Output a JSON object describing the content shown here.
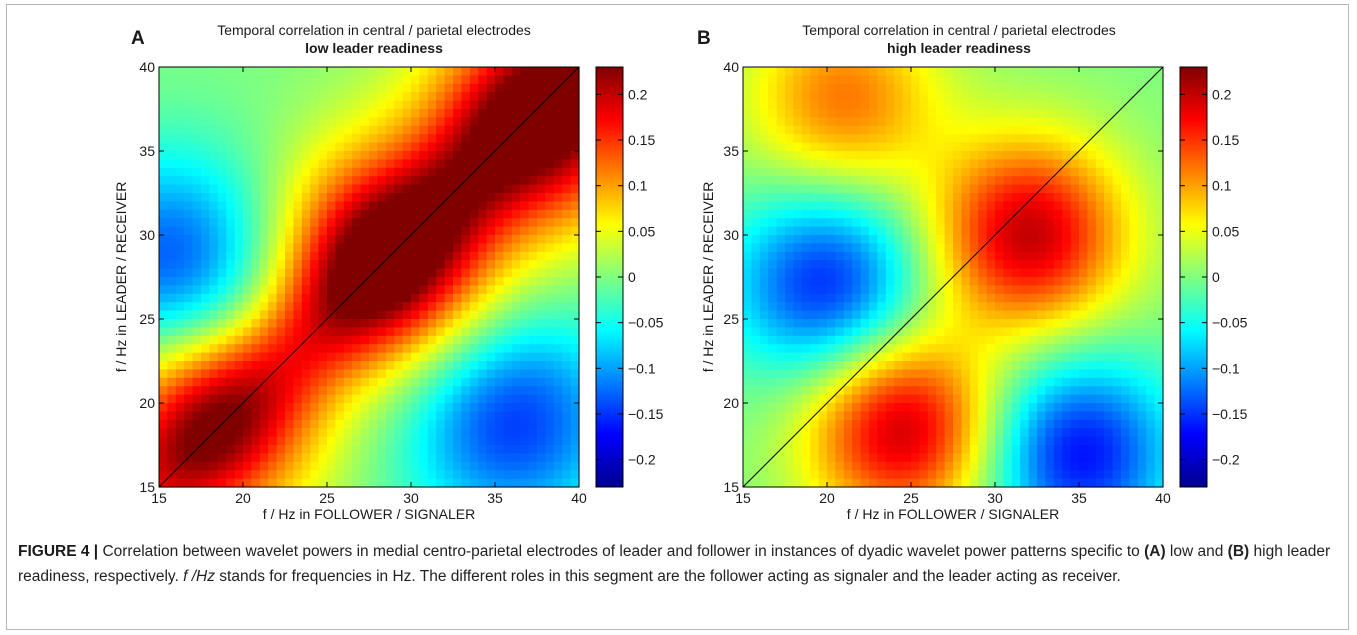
{
  "colors": {
    "colormap": "jet",
    "diagonal_line": "#000000"
  },
  "chart_data": [
    {
      "type": "heatmap",
      "panel_label": "A",
      "title": "Temporal correlation in central / parietal electrodes",
      "subtitle": "low leader readiness",
      "xlabel": "f / Hz in FOLLOWER / SIGNALER",
      "ylabel": "f / Hz in LEADER / RECEIVER",
      "xlim": [
        15,
        40
      ],
      "ylim": [
        15,
        40
      ],
      "x_ticks": [
        15,
        20,
        25,
        30,
        35,
        40
      ],
      "y_ticks": [
        15,
        20,
        25,
        30,
        35,
        40
      ],
      "colorbar": {
        "range": [
          -0.23,
          0.23
        ],
        "ticks": [
          -0.2,
          -0.15,
          -0.1,
          -0.05,
          0,
          0.05,
          0.1,
          0.15,
          0.2
        ],
        "tick_labels": [
          "−0.2",
          "−0.15",
          "−0.1",
          "−0.05",
          "0",
          "0.05",
          "0.1",
          "0.15",
          "0.2"
        ]
      },
      "diagonal_line": {
        "from": [
          15,
          15
        ],
        "to": [
          40,
          40
        ]
      },
      "value_range": [
        -0.18,
        0.23
      ],
      "features": [
        {
          "x": 28.5,
          "y": 28.5,
          "value": 0.23,
          "label": "diagonal maximum"
        },
        {
          "x": 38,
          "y": 37,
          "value": 0.22,
          "label": "upper-right maximum"
        },
        {
          "x": 18,
          "y": 19,
          "value": 0.18,
          "label": "lower-left maximum"
        },
        {
          "x": 16,
          "y": 28,
          "value": -0.15,
          "label": "left minimum"
        },
        {
          "x": 36,
          "y": 19,
          "value": -0.15,
          "label": "lower-right minimum"
        }
      ]
    },
    {
      "type": "heatmap",
      "panel_label": "B",
      "title": "Temporal correlation in central / parietal electrodes",
      "subtitle": "high leader readiness",
      "xlabel": "f / Hz in FOLLOWER / SIGNALER",
      "ylabel": "f / Hz in LEADER / RECEIVER",
      "xlim": [
        15,
        40
      ],
      "ylim": [
        15,
        40
      ],
      "x_ticks": [
        15,
        20,
        25,
        30,
        35,
        40
      ],
      "y_ticks": [
        15,
        20,
        25,
        30,
        35,
        40
      ],
      "colorbar": {
        "range": [
          -0.23,
          0.23
        ],
        "ticks": [
          -0.2,
          -0.15,
          -0.1,
          -0.05,
          0,
          0.05,
          0.1,
          0.15,
          0.2
        ],
        "tick_labels": [
          "−0.2",
          "−0.15",
          "−0.1",
          "−0.05",
          "0",
          "0.05",
          "0.1",
          "0.15",
          "0.2"
        ]
      },
      "diagonal_line": {
        "from": [
          15,
          15
        ],
        "to": [
          40,
          40
        ]
      },
      "value_range": [
        -0.18,
        0.2
      ],
      "features": [
        {
          "x": 32,
          "y": 30,
          "value": 0.2,
          "label": "upper-right maximum"
        },
        {
          "x": 24.5,
          "y": 18.5,
          "value": 0.2,
          "label": "lower maximum"
        },
        {
          "x": 21,
          "y": 38,
          "value": 0.12,
          "label": "top maximum"
        },
        {
          "x": 20,
          "y": 27,
          "value": -0.16,
          "label": "left minimum"
        },
        {
          "x": 35,
          "y": 17,
          "value": -0.17,
          "label": "lower-right minimum"
        }
      ]
    }
  ],
  "caption": {
    "label": "FIGURE 4 |",
    "text_1": " Correlation between wavelet powers in medial centro-parietal electrodes of leader and follower in instances of dyadic wavelet power patterns specific to ",
    "a_label": "(A)",
    "text_2": " low and ",
    "b_label": "(B)",
    "text_3": " high leader readiness, respectively. ",
    "italic_term": "f /Hz",
    "text_4": " stands for frequencies in Hz. The different roles in this segment are the follower acting as signaler and the leader acting as receiver."
  }
}
